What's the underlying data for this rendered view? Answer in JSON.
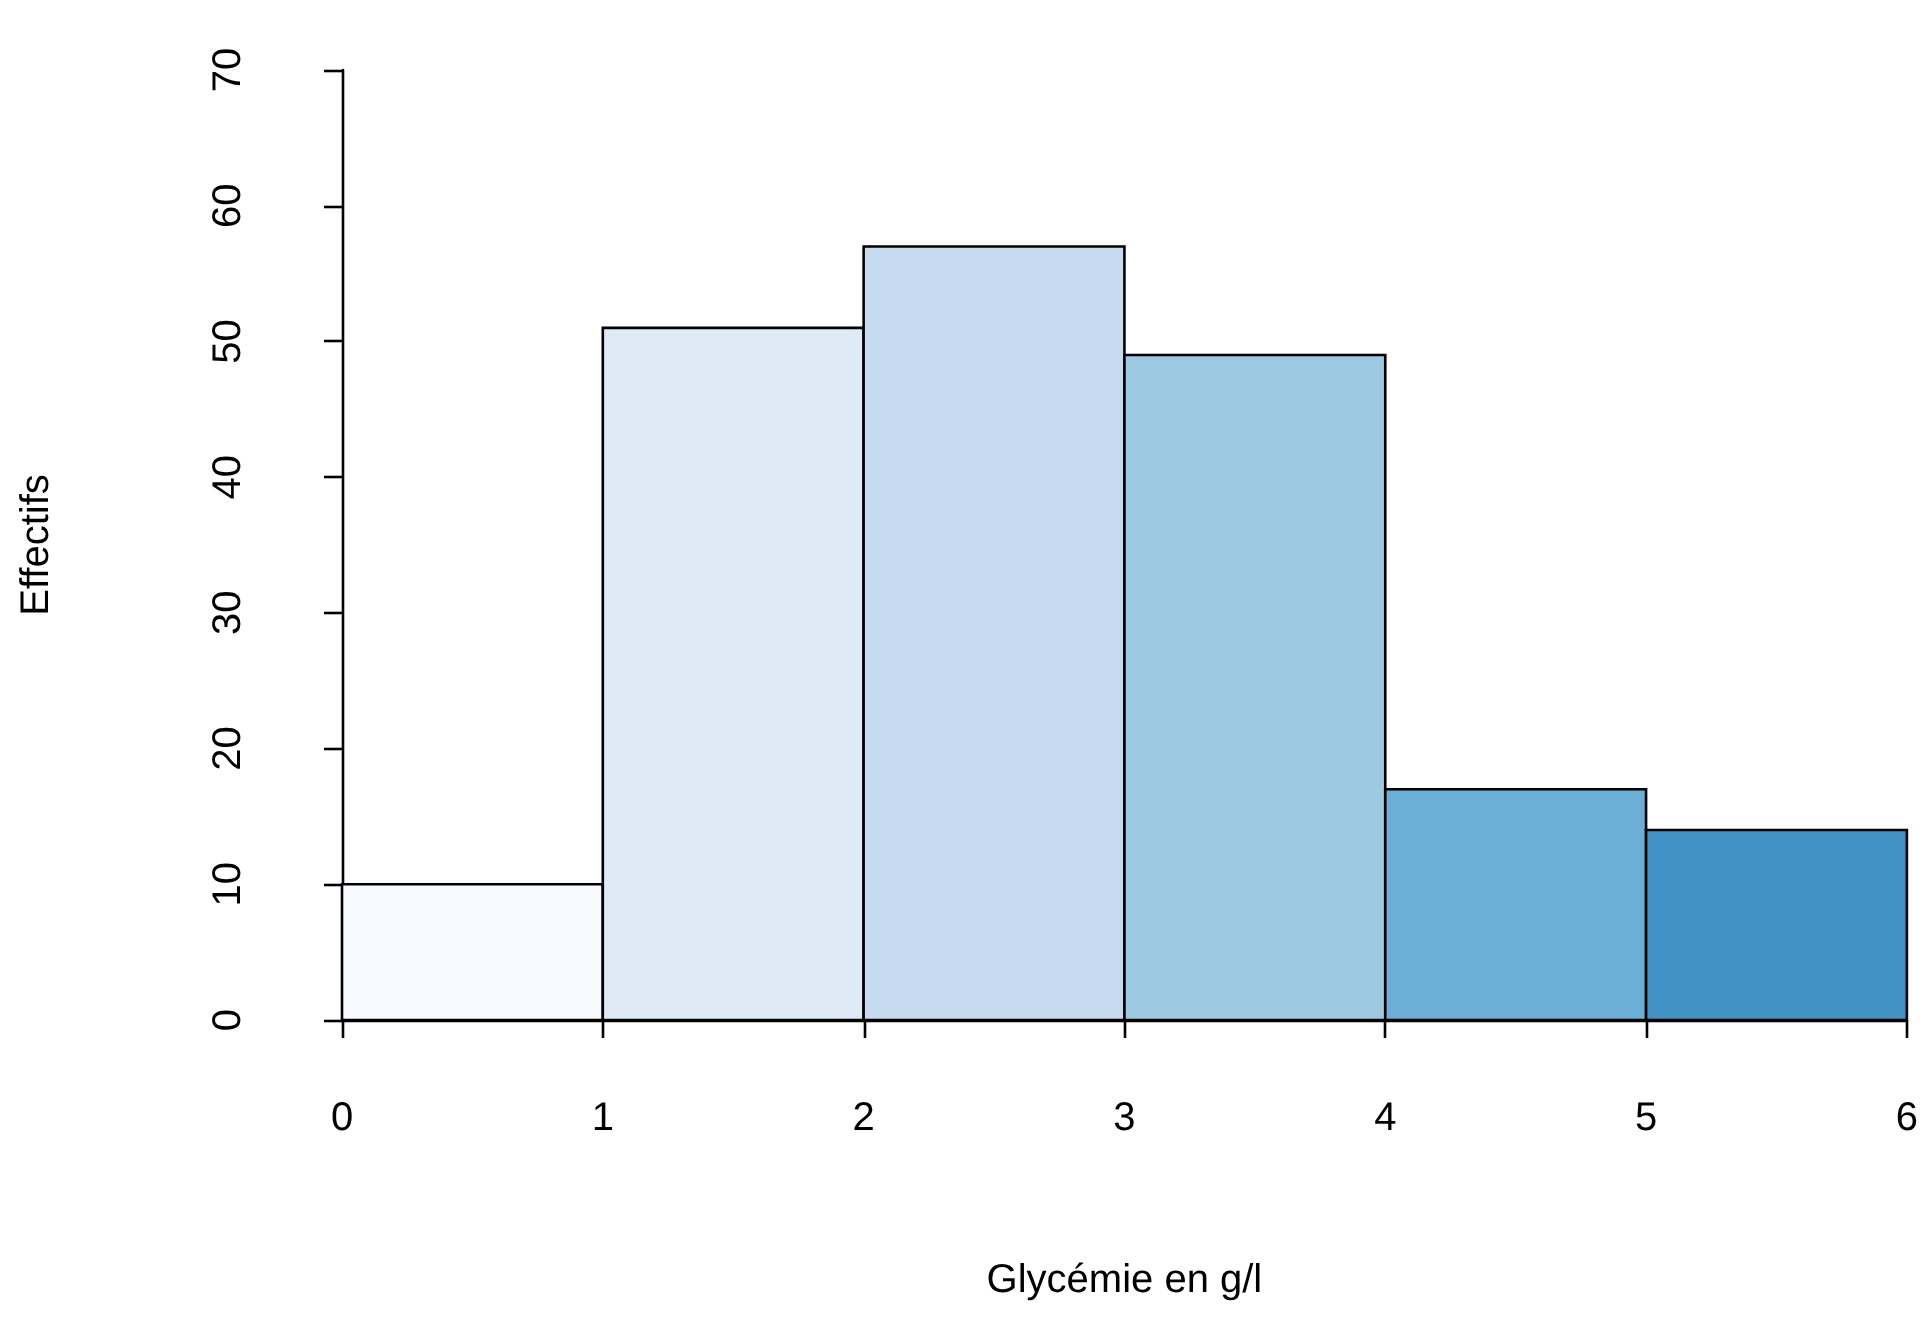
{
  "chart_data": {
    "type": "histogram",
    "xlabel": "Glycémie en g/l",
    "ylabel": "Effectifs",
    "bins": [
      0,
      1,
      2,
      3,
      4,
      5,
      6
    ],
    "values": [
      10,
      51,
      57,
      49,
      17,
      14
    ],
    "colors": [
      "#f7fbff",
      "#deebf7",
      "#c6dbef",
      "#9ecae1",
      "#6baed6",
      "#4292c6"
    ],
    "xlim": [
      0,
      6
    ],
    "xticks": [
      0,
      1,
      2,
      3,
      4,
      5,
      6
    ],
    "ylim": [
      0,
      70
    ],
    "yticks": [
      0,
      10,
      20,
      30,
      40,
      50,
      60,
      70
    ]
  }
}
